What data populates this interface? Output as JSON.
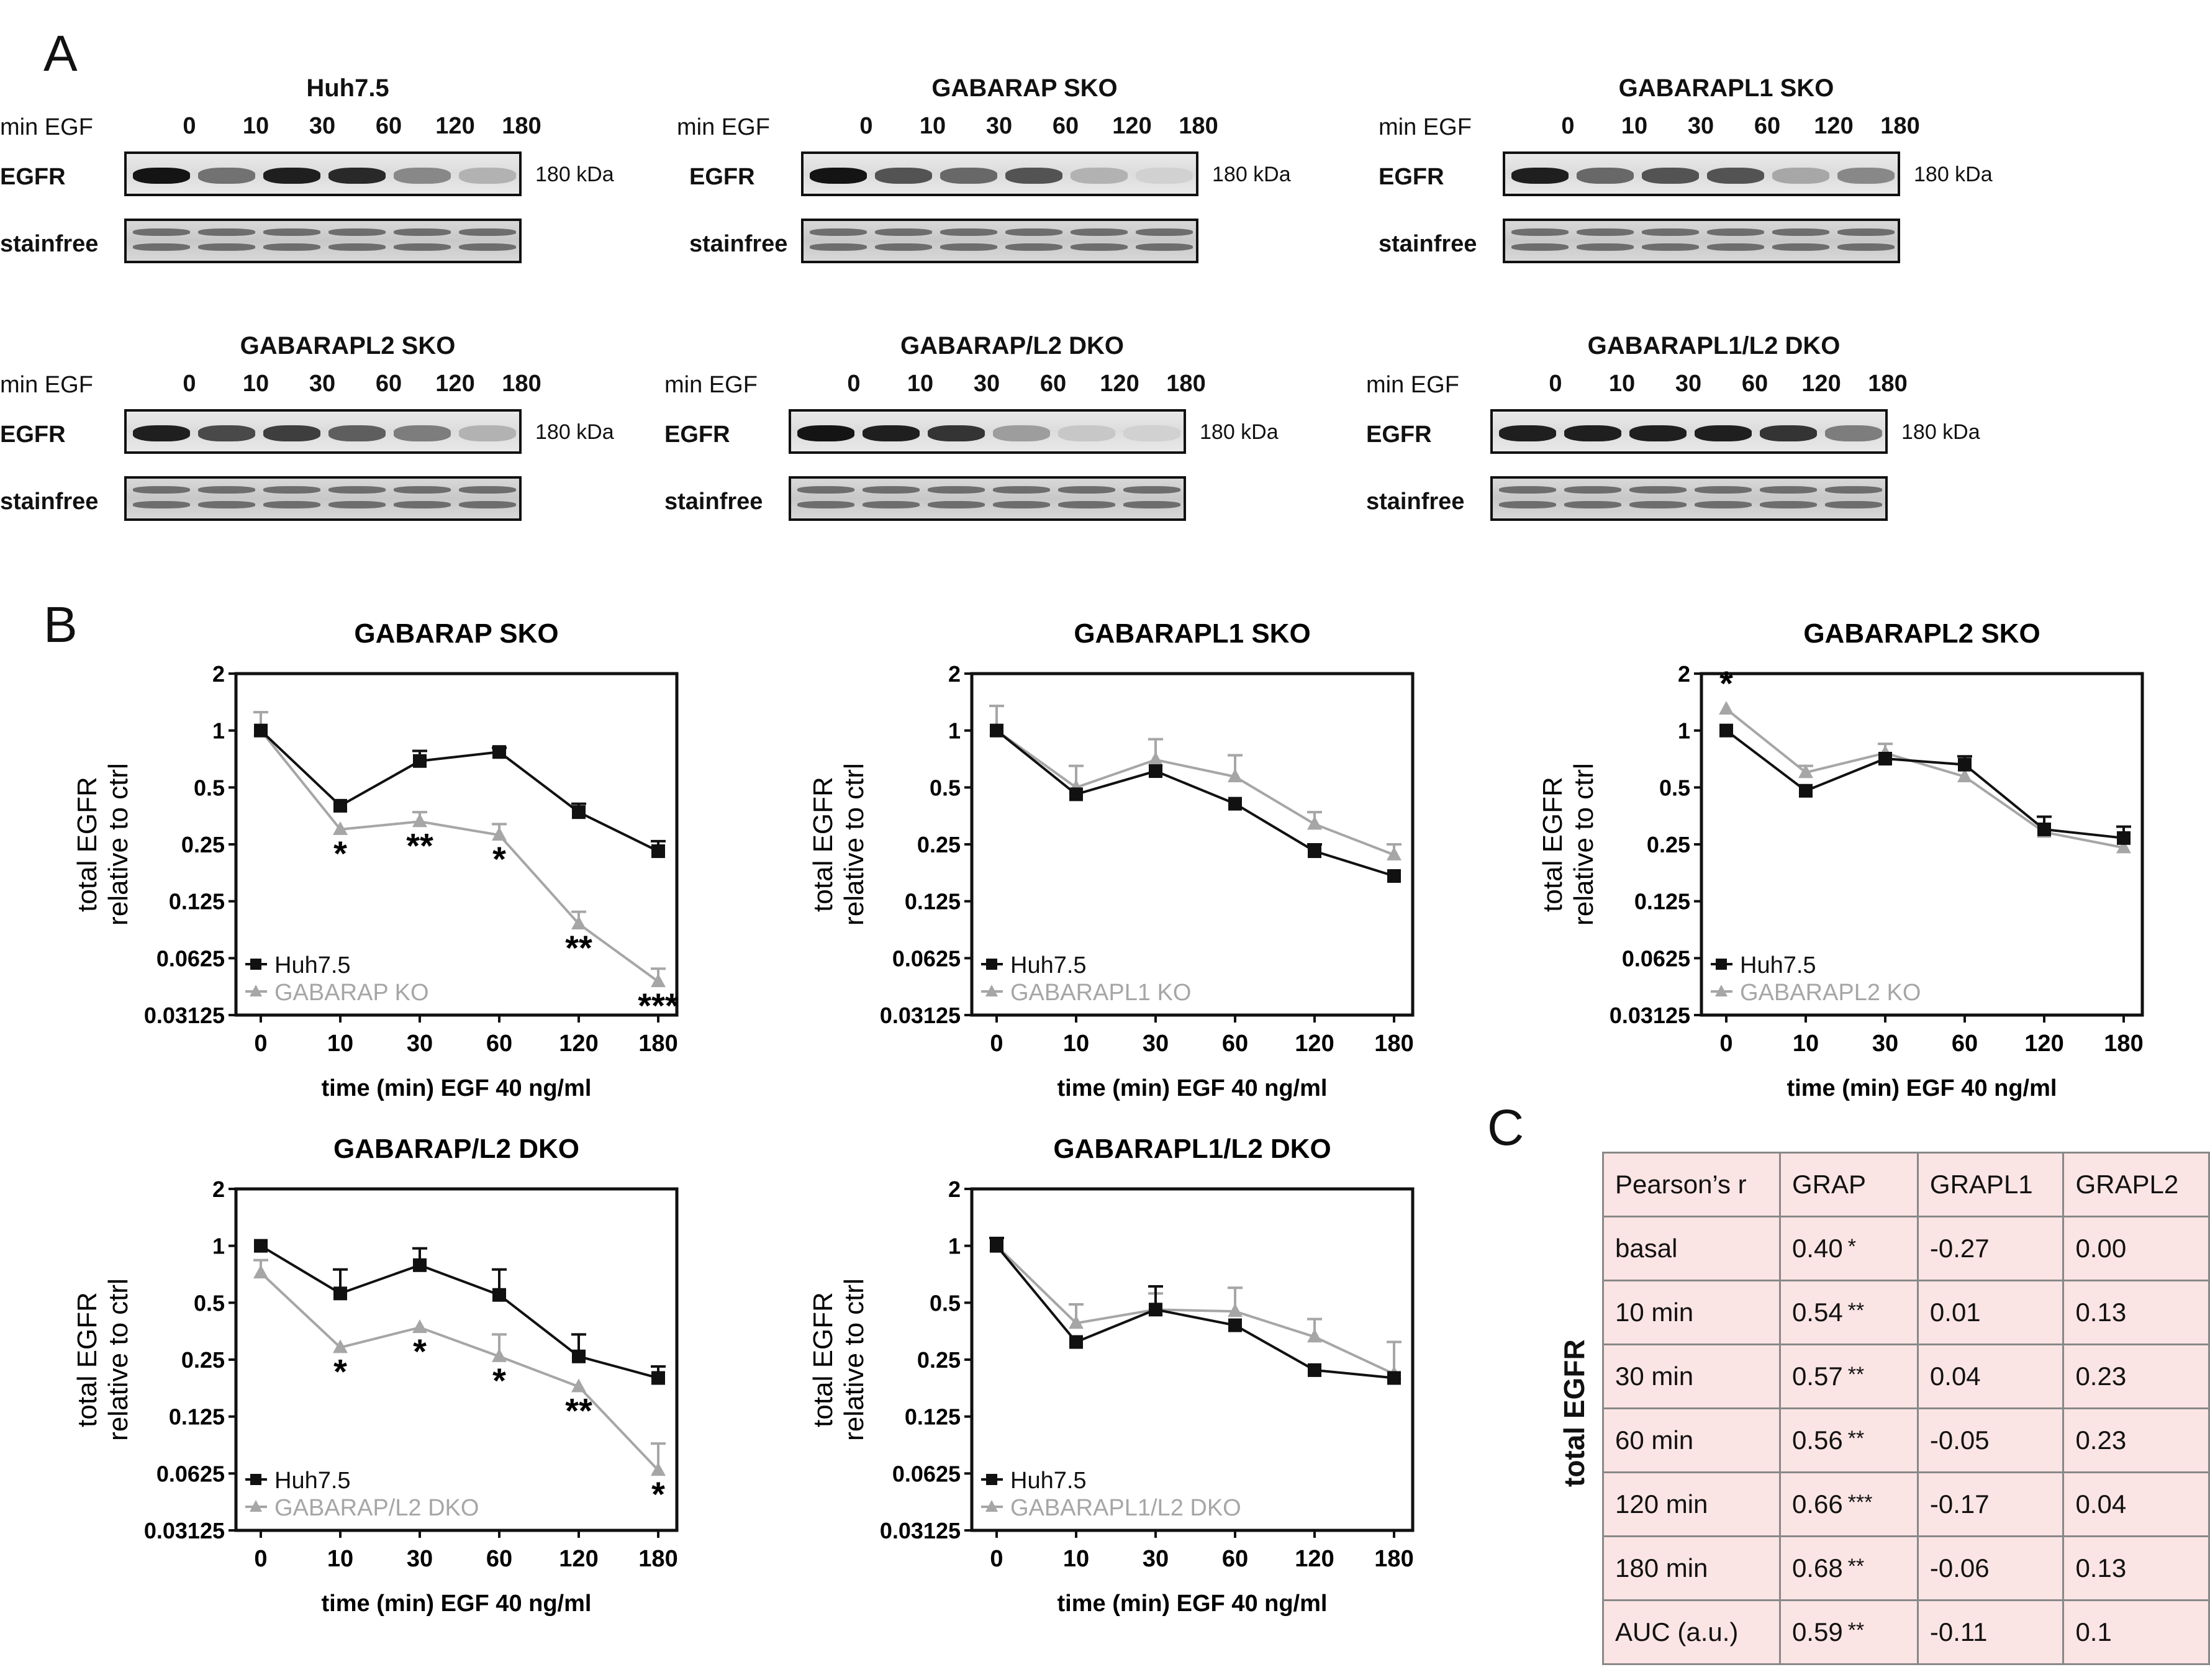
{
  "panels": {
    "a": "A",
    "b": "B",
    "c": "C"
  },
  "blots": [
    {
      "title": "Huh7.5",
      "min_egf": "min EGF",
      "lanes": [
        "0",
        "10",
        "30",
        "60",
        "120",
        "180"
      ],
      "egfr_label": "EGFR",
      "stainfree_label": "stainfree",
      "kda": "180 kDa",
      "band_intensity": [
        1.0,
        0.55,
        0.95,
        0.9,
        0.45,
        0.25
      ]
    },
    {
      "title": "GABARAP SKO",
      "min_egf": "min EGF",
      "lanes": [
        "0",
        "10",
        "30",
        "60",
        "120",
        "180"
      ],
      "egfr_label": "EGFR",
      "stainfree_label": "stainfree",
      "kda": "180 kDa",
      "band_intensity": [
        1.0,
        0.7,
        0.6,
        0.7,
        0.25,
        0.1
      ]
    },
    {
      "title": "GABARAPL1 SKO",
      "min_egf": "min EGF",
      "lanes": [
        "0",
        "10",
        "30",
        "60",
        "120",
        "180"
      ],
      "egfr_label": "EGFR",
      "stainfree_label": "stainfree",
      "kda": "180 kDa",
      "band_intensity": [
        0.95,
        0.6,
        0.7,
        0.7,
        0.3,
        0.45
      ]
    },
    {
      "title": "GABARAPL2 SKO",
      "min_egf": "min EGF",
      "lanes": [
        "0",
        "10",
        "30",
        "60",
        "120",
        "180"
      ],
      "egfr_label": "EGFR",
      "stainfree_label": "stainfree",
      "kda": "180 kDa",
      "band_intensity": [
        0.95,
        0.75,
        0.8,
        0.65,
        0.5,
        0.25
      ]
    },
    {
      "title": "GABARAP/L2 DKO",
      "min_egf": "min EGF",
      "lanes": [
        "0",
        "10",
        "30",
        "60",
        "120",
        "180"
      ],
      "egfr_label": "EGFR",
      "stainfree_label": "stainfree",
      "kda": "180 kDa",
      "band_intensity": [
        1.0,
        0.95,
        0.85,
        0.35,
        0.15,
        0.1
      ]
    },
    {
      "title": "GABARAPL1/L2 DKO",
      "min_egf": "min EGF",
      "lanes": [
        "0",
        "10",
        "30",
        "60",
        "120",
        "180"
      ],
      "egfr_label": "EGFR",
      "stainfree_label": "stainfree",
      "kda": "180 kDa",
      "band_intensity": [
        0.95,
        0.95,
        0.95,
        0.95,
        0.85,
        0.5
      ]
    }
  ],
  "chart_data": [
    {
      "type": "line",
      "title": "GABARAP SKO",
      "xlabel": "time (min) EGF 40 ng/ml",
      "ylabel_1": "total EGFR",
      "ylabel_2": "relative to ctrl",
      "yscale": "log2",
      "ylim": [
        0.03125,
        2
      ],
      "yticks": [
        "2",
        "1",
        "0.5",
        "0.25",
        "0.125",
        "0.0625",
        "0.03125"
      ],
      "categories": [
        "0",
        "10",
        "30",
        "60",
        "120",
        "180"
      ],
      "series": [
        {
          "name": "Huh7.5",
          "color": "#111111",
          "marker": "square",
          "values": [
            1.0,
            0.4,
            0.69,
            0.77,
            0.37,
            0.23
          ],
          "err": [
            0,
            0,
            0.09,
            0.04,
            0.04,
            0.03
          ]
        },
        {
          "name": "GABARAP KO",
          "color": "#a6a6a6",
          "marker": "triangle",
          "values": [
            1.0,
            0.3,
            0.33,
            0.28,
            0.095,
            0.047
          ],
          "err": [
            0.25,
            0,
            0.04,
            0.04,
            0.015,
            0.008
          ]
        }
      ],
      "annotations": [
        "",
        "*",
        "**",
        "*",
        "**",
        "***"
      ]
    },
    {
      "type": "line",
      "title": "GABARAPL1 SKO",
      "xlabel": "time (min) EGF 40 ng/ml",
      "ylabel_1": "total EGFR",
      "ylabel_2": "relative to ctrl",
      "yscale": "log2",
      "ylim": [
        0.03125,
        2
      ],
      "yticks": [
        "2",
        "1",
        "0.5",
        "0.25",
        "0.125",
        "0.0625",
        "0.03125"
      ],
      "categories": [
        "0",
        "10",
        "30",
        "60",
        "120",
        "180"
      ],
      "series": [
        {
          "name": "Huh7.5",
          "color": "#111111",
          "marker": "square",
          "values": [
            1.0,
            0.46,
            0.61,
            0.41,
            0.23,
            0.17
          ],
          "err": [
            0,
            0,
            0,
            0,
            0.02,
            0
          ]
        },
        {
          "name": "GABARAPL1 KO",
          "color": "#a6a6a6",
          "marker": "triangle",
          "values": [
            1.0,
            0.5,
            0.7,
            0.57,
            0.32,
            0.22
          ],
          "err": [
            0.35,
            0.15,
            0.2,
            0.17,
            0.05,
            0.03
          ]
        }
      ],
      "annotations": [
        "",
        "",
        "",
        "",
        "",
        ""
      ]
    },
    {
      "type": "line",
      "title": "GABARAPL2 SKO",
      "xlabel": "time (min) EGF 40 ng/ml",
      "ylabel_1": "total EGFR",
      "ylabel_2": "relative to ctrl",
      "yscale": "log2",
      "ylim": [
        0.03125,
        2
      ],
      "yticks": [
        "2",
        "1",
        "0.5",
        "0.25",
        "0.125",
        "0.0625",
        "0.03125"
      ],
      "categories": [
        "0",
        "10",
        "30",
        "60",
        "120",
        "180"
      ],
      "series": [
        {
          "name": "Huh7.5",
          "color": "#111111",
          "marker": "square",
          "values": [
            1.0,
            0.48,
            0.71,
            0.66,
            0.3,
            0.27
          ],
          "err": [
            0,
            0,
            0,
            0.07,
            0.05,
            0.04
          ]
        },
        {
          "name": "GABARAPL2 KO",
          "color": "#a6a6a6",
          "marker": "triangle",
          "values": [
            1.3,
            0.6,
            0.76,
            0.57,
            0.29,
            0.24
          ],
          "err": [
            0,
            0.05,
            0.09,
            0,
            0,
            0
          ]
        }
      ],
      "annotations": [
        "*",
        "",
        "",
        "",
        "",
        ""
      ]
    },
    {
      "type": "line",
      "title": "GABARAP/L2 DKO",
      "xlabel": "time (min) EGF 40 ng/ml",
      "ylabel_1": "total EGFR",
      "ylabel_2": "relative to ctrl",
      "yscale": "log2",
      "ylim": [
        0.03125,
        2
      ],
      "yticks": [
        "2",
        "1",
        "0.5",
        "0.25",
        "0.125",
        "0.0625",
        "0.03125"
      ],
      "categories": [
        "0",
        "10",
        "30",
        "60",
        "120",
        "180"
      ],
      "series": [
        {
          "name": "Huh7.5",
          "color": "#111111",
          "marker": "square",
          "values": [
            1.0,
            0.56,
            0.79,
            0.55,
            0.26,
            0.2
          ],
          "err": [
            0,
            0.19,
            0.18,
            0.2,
            0.08,
            0.03
          ]
        },
        {
          "name": "GABARAP/L2 DKO",
          "color": "#a6a6a6",
          "marker": "triangle",
          "values": [
            0.72,
            0.29,
            0.37,
            0.26,
            0.18,
            0.065
          ],
          "err": [
            0.12,
            0,
            0,
            0.08,
            0,
            0.025
          ]
        }
      ],
      "annotations": [
        "",
        "*",
        "*",
        "*",
        "**",
        "*"
      ]
    },
    {
      "type": "line",
      "title": "GABARAPL1/L2 DKO",
      "xlabel": "time (min) EGF 40 ng/ml",
      "ylabel_1": "total EGFR",
      "ylabel_2": "relative to ctrl",
      "yscale": "log2",
      "ylim": [
        0.03125,
        2
      ],
      "yticks": [
        "2",
        "1",
        "0.5",
        "0.25",
        "0.125",
        "0.0625",
        "0.03125"
      ],
      "categories": [
        "0",
        "10",
        "30",
        "60",
        "120",
        "180"
      ],
      "series": [
        {
          "name": "Huh7.5",
          "color": "#111111",
          "marker": "square",
          "values": [
            1.0,
            0.31,
            0.46,
            0.38,
            0.22,
            0.2
          ],
          "err": [
            0.1,
            0,
            0.15,
            0,
            0,
            0
          ]
        },
        {
          "name": "GABARAPL1/L2 DKO",
          "color": "#a6a6a6",
          "marker": "triangle",
          "values": [
            1.0,
            0.39,
            0.46,
            0.45,
            0.33,
            0.21
          ],
          "err": [
            0.1,
            0.1,
            0.1,
            0.15,
            0.08,
            0.1
          ]
        }
      ],
      "annotations": [
        "",
        "",
        "",
        "",
        "",
        ""
      ]
    }
  ],
  "table": {
    "side_label": "total EGFR",
    "header": [
      "Pearson’s r",
      "GRAP",
      "GRAPL1",
      "GRAPL2"
    ],
    "rows": [
      {
        "label": "basal",
        "grap": "0.40",
        "sig": "*",
        "grapl1": "-0.27",
        "grapl2": "0.00"
      },
      {
        "label": "10 min",
        "grap": "0.54",
        "sig": "**",
        "grapl1": "0.01",
        "grapl2": "0.13"
      },
      {
        "label": "30 min",
        "grap": "0.57",
        "sig": "**",
        "grapl1": "0.04",
        "grapl2": "0.23"
      },
      {
        "label": "60 min",
        "grap": "0.56",
        "sig": "**",
        "grapl1": "-0.05",
        "grapl2": "0.23"
      },
      {
        "label": "120 min",
        "grap": "0.66",
        "sig": "***",
        "grapl1": "-0.17",
        "grapl2": "0.04"
      },
      {
        "label": "180 min",
        "grap": "0.68",
        "sig": "**",
        "grapl1": "-0.06",
        "grapl2": "0.13"
      },
      {
        "label": "AUC (a.u.)",
        "grap": "0.59",
        "sig": "**",
        "grapl1": "-0.11",
        "grapl2": "0.1"
      }
    ]
  }
}
